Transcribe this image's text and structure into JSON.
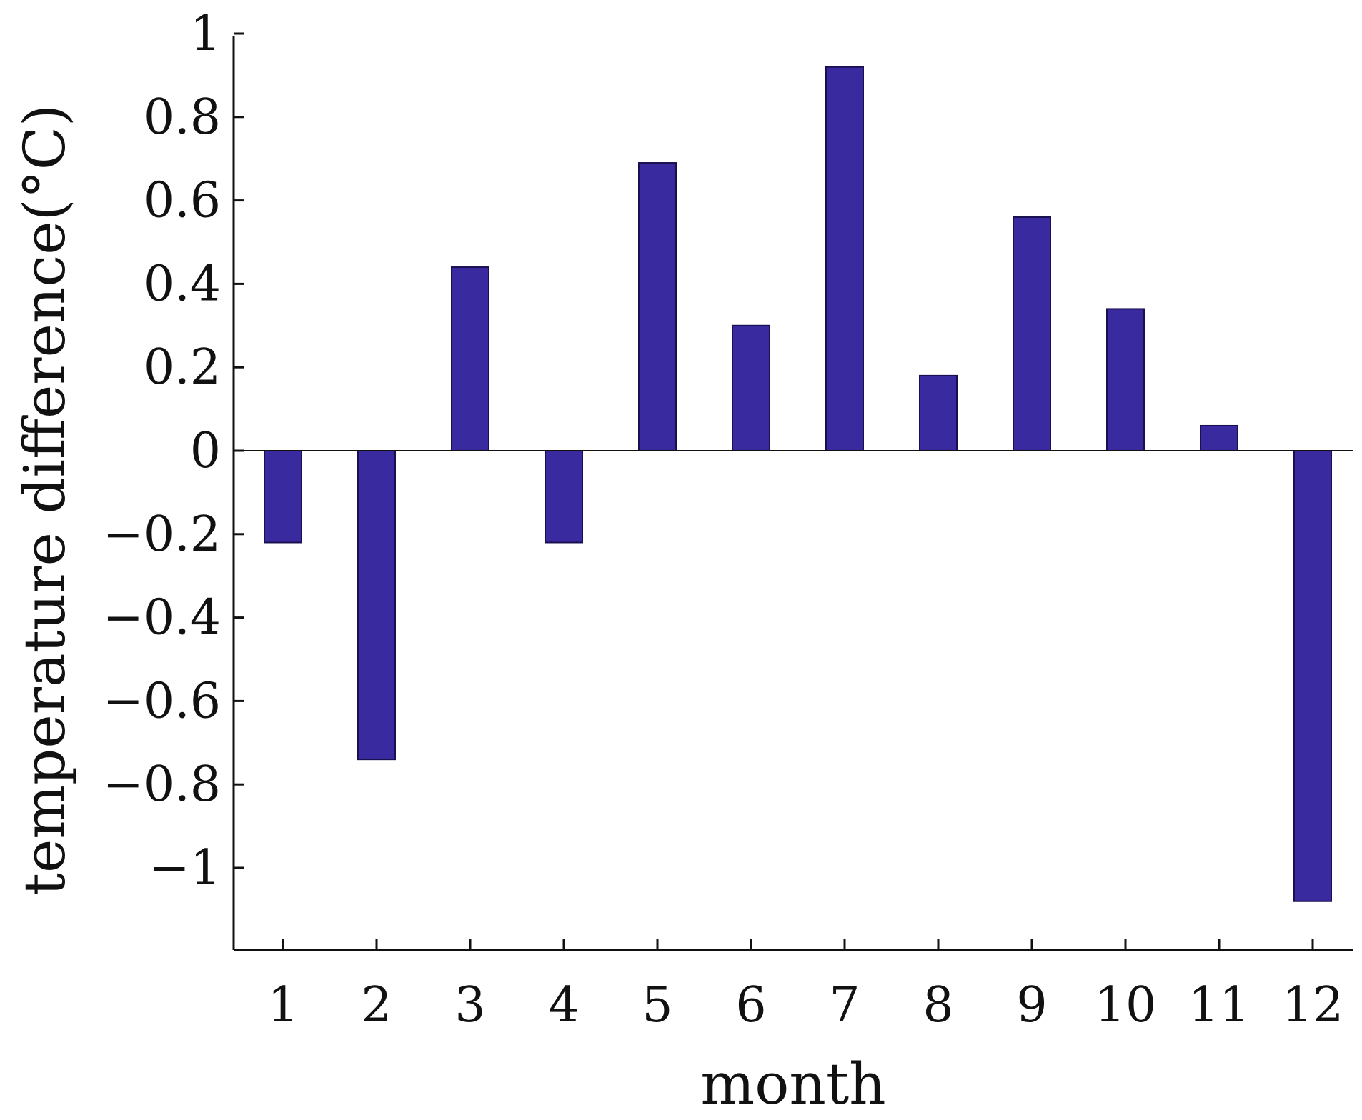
{
  "chart_data": {
    "type": "bar",
    "categories": [
      "1",
      "2",
      "3",
      "4",
      "5",
      "6",
      "7",
      "8",
      "9",
      "10",
      "11",
      "12"
    ],
    "values": [
      -0.22,
      -0.74,
      0.44,
      -0.22,
      0.69,
      0.3,
      0.92,
      0.18,
      0.56,
      0.34,
      0.06,
      -1.08
    ],
    "xlabel": "month",
    "ylabel": "temperature difference(°C)",
    "ylim": [
      -1.2,
      1
    ],
    "yticks": [
      1,
      0.8,
      0.6,
      0.4,
      0.2,
      0,
      -0.2,
      -0.4,
      -0.6,
      -0.8,
      -1
    ],
    "ytick_labels": [
      "1",
      "0.8",
      "0.6",
      "0.4",
      "0.2",
      "0",
      "−0.2",
      "−0.4",
      "−0.6",
      "−0.8",
      "−1"
    ],
    "bar_color": "#3a2aa0",
    "grid": false,
    "legend": "none"
  }
}
